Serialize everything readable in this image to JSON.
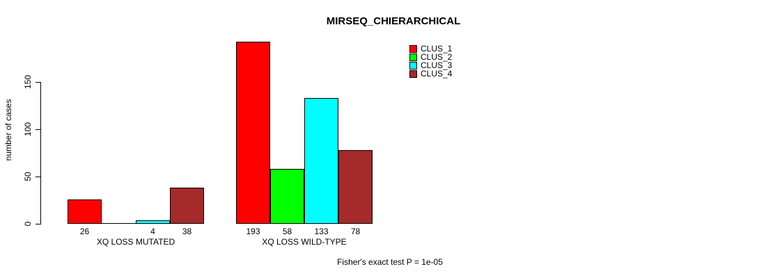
{
  "chart_data": {
    "type": "bar",
    "title": "MIRSEQ_CHIERARCHICAL",
    "ylabel": "number of cases",
    "xlabel": "",
    "ylim": [
      0,
      150
    ],
    "yticks": [
      0,
      50,
      100,
      150
    ],
    "grid": false,
    "legend_position": "top-right",
    "categories": [
      "XQ LOSS MUTATED",
      "XQ LOSS WILD-TYPE"
    ],
    "series": [
      {
        "name": "CLUS_1",
        "color": "#FF0000",
        "values": [
          26,
          193
        ]
      },
      {
        "name": "CLUS_2",
        "color": "#00FF00",
        "values": [
          0,
          58
        ]
      },
      {
        "name": "CLUS_3",
        "color": "#00FFFF",
        "values": [
          4,
          133
        ]
      },
      {
        "name": "CLUS_4",
        "color": "#A52A2A",
        "values": [
          38,
          78
        ]
      }
    ],
    "bar_value_labels": [
      [
        "26",
        "",
        "4",
        "38"
      ],
      [
        "193",
        "58",
        "133",
        "78"
      ]
    ],
    "annotation": "Fisher's exact test P = 1e-05"
  }
}
